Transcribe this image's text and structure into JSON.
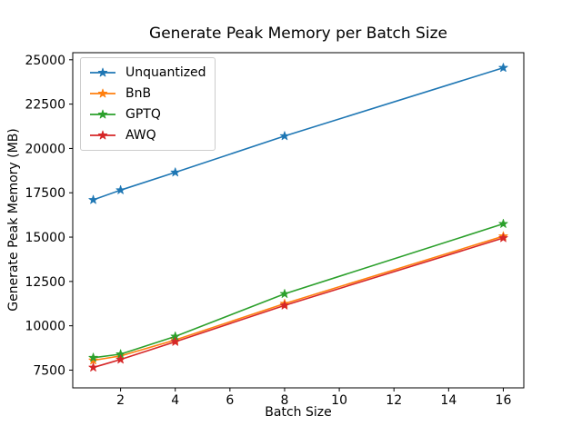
{
  "title": "Generate Peak Memory per Batch Size",
  "chart_data": {
    "type": "line",
    "title": "Generate Peak Memory per Batch Size",
    "xlabel": "Batch Size",
    "ylabel": "Generate Peak Memory (MB)",
    "x": [
      1,
      2,
      4,
      8,
      16
    ],
    "series": [
      {
        "name": "Unquantized",
        "color": "#1f77b4",
        "values": [
          17100,
          17650,
          18650,
          20700,
          24550
        ]
      },
      {
        "name": "BnB",
        "color": "#ff7f0e",
        "values": [
          8050,
          8300,
          9200,
          11250,
          15050
        ]
      },
      {
        "name": "GPTQ",
        "color": "#2ca02c",
        "values": [
          8200,
          8400,
          9400,
          11800,
          15750
        ]
      },
      {
        "name": "AWQ",
        "color": "#d62728",
        "values": [
          7650,
          8100,
          9100,
          11150,
          14950
        ]
      }
    ],
    "xlim": [
      0.25,
      16.75
    ],
    "ylim": [
      6500,
      25400
    ],
    "xticks": [
      2,
      4,
      6,
      8,
      10,
      12,
      14,
      16
    ],
    "yticks": [
      7500,
      10000,
      12500,
      15000,
      17500,
      20000,
      22500,
      25000
    ],
    "marker": "star",
    "line_width": 1.6,
    "grid": false,
    "legend_position": "upper-left",
    "background": "#ffffff",
    "axis_color": "#000000"
  }
}
